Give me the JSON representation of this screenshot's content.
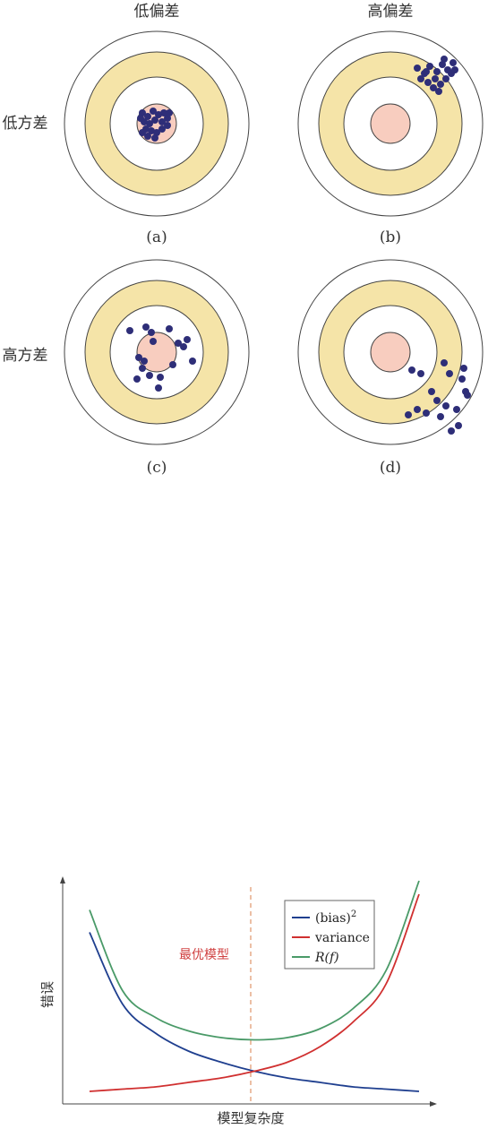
{
  "targets": {
    "col_headers": [
      "低偏差",
      "高偏差"
    ],
    "row_headers": [
      "低方差",
      "高方差"
    ],
    "panels": [
      {
        "caption": "(a)"
      },
      {
        "caption": "(b)"
      },
      {
        "caption": "(c)"
      },
      {
        "caption": "(d)"
      }
    ],
    "colors": {
      "ring": "#f5e4a8",
      "bullseye": "#f8cdbf",
      "dot": "#2e2e78",
      "stroke": "#444444"
    }
  },
  "chart_data": {
    "type": "line",
    "title": "",
    "xlabel": "模型复杂度",
    "ylabel": "错误",
    "annotation": "最优模型",
    "x": [
      0,
      0.1,
      0.2,
      0.3,
      0.4,
      0.5,
      0.6,
      0.7,
      0.8,
      0.9,
      1.0
    ],
    "series": [
      {
        "name": "(bias)",
        "superscript": "2",
        "color": "#1f3f8f",
        "values": [
          0.75,
          0.43,
          0.3,
          0.22,
          0.17,
          0.13,
          0.1,
          0.08,
          0.06,
          0.05,
          0.04
        ]
      },
      {
        "name": "variance",
        "color": "#d03030",
        "values": [
          0.04,
          0.05,
          0.06,
          0.08,
          0.1,
          0.13,
          0.17,
          0.24,
          0.35,
          0.52,
          0.92
        ]
      },
      {
        "name": "R(f)",
        "color": "#4a9a68",
        "values": [
          0.85,
          0.49,
          0.37,
          0.31,
          0.28,
          0.27,
          0.28,
          0.32,
          0.41,
          0.58,
          0.98
        ]
      }
    ],
    "optimum_x": 0.5,
    "legend_position": "top-right"
  }
}
